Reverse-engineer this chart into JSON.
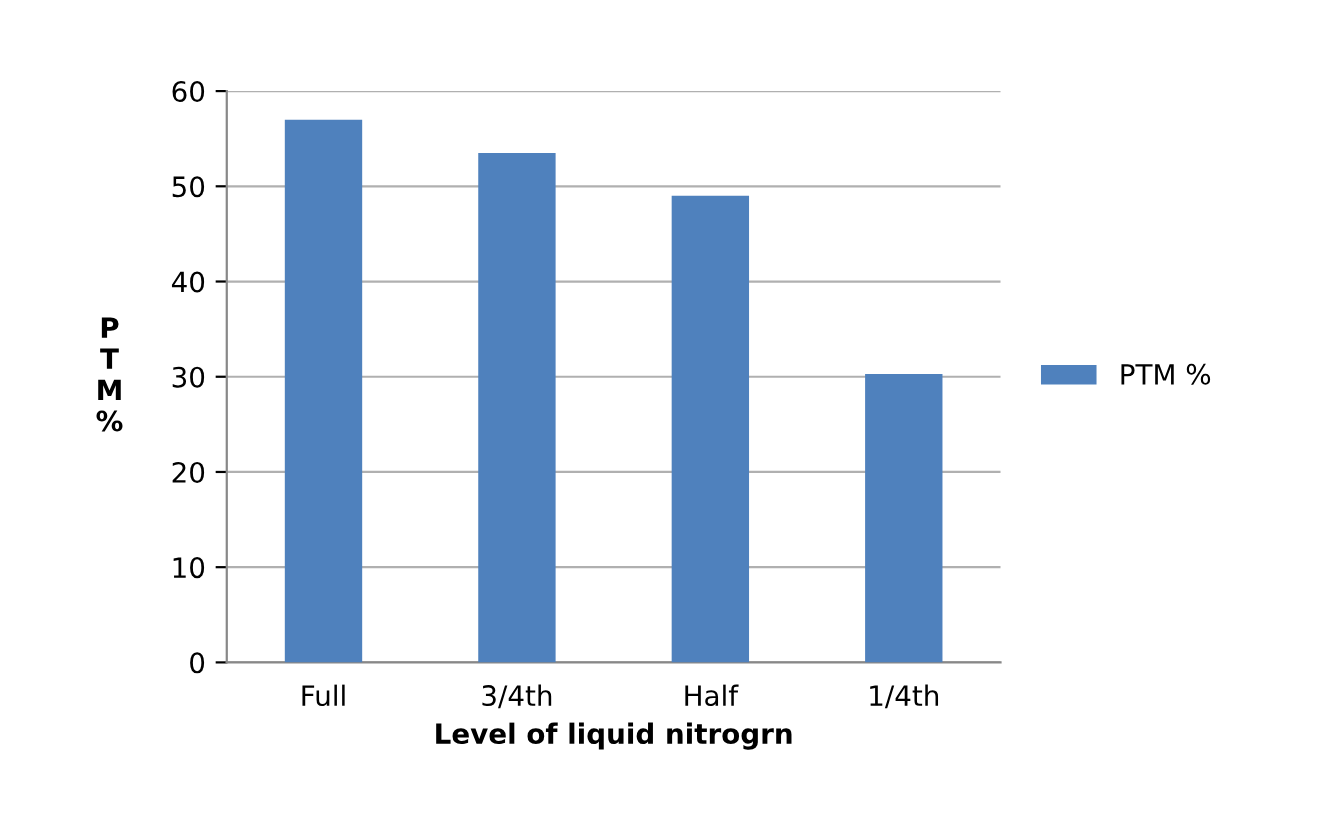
{
  "chart_data": {
    "type": "bar",
    "xlabel": "Level of liquid nitrogrn",
    "ylabel": "PTM %",
    "categories": [
      "Full",
      "3/4th",
      "Half",
      "1/4th"
    ],
    "series": [
      {
        "name": "PTM %",
        "color": "#4f81bd",
        "values": [
          57,
          53.5,
          49,
          30.3
        ]
      }
    ],
    "ylim": [
      0,
      60
    ],
    "yticks": [
      0,
      10,
      20,
      30,
      40,
      50,
      60
    ],
    "grid": "y",
    "legend": "right"
  }
}
